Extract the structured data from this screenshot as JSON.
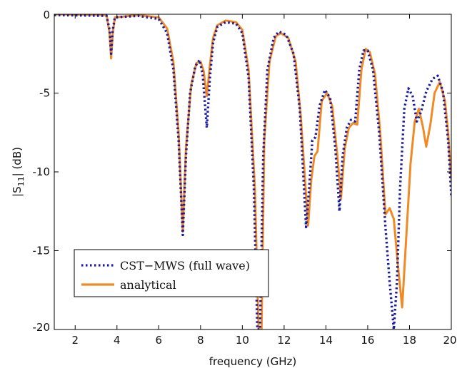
{
  "chart_data": {
    "type": "line",
    "xlabel": "frequency (GHz)",
    "ylabel": "|S",
    "ylabel_sub": "11",
    "ylabel_tail": "| (dB)",
    "xlim": [
      1,
      20
    ],
    "ylim": [
      -20,
      0
    ],
    "x_ticks": [
      "2",
      "4",
      "6",
      "8",
      "10",
      "12",
      "14",
      "16",
      "18",
      "20"
    ],
    "y_ticks": [
      "0",
      "-5",
      "-10",
      "-15",
      "-20"
    ],
    "grid": false,
    "legend_position": "bottom-left",
    "series": [
      {
        "name": "CST−MWS (full wave)",
        "color": "#1a1aa8",
        "style": "dotted",
        "points": [
          [
            1.0,
            -0.05
          ],
          [
            3.5,
            -0.1
          ],
          [
            3.65,
            -1.0
          ],
          [
            3.72,
            -2.5
          ],
          [
            3.8,
            -1.0
          ],
          [
            3.9,
            -0.2
          ],
          [
            5.0,
            -0.1
          ],
          [
            6.0,
            -0.3
          ],
          [
            6.4,
            -1.2
          ],
          [
            6.7,
            -3.5
          ],
          [
            6.95,
            -8.0
          ],
          [
            7.15,
            -14.0
          ],
          [
            7.3,
            -9.0
          ],
          [
            7.5,
            -5.0
          ],
          [
            7.75,
            -3.3
          ],
          [
            7.95,
            -2.9
          ],
          [
            8.1,
            -3.8
          ],
          [
            8.3,
            -7.2
          ],
          [
            8.45,
            -4.0
          ],
          [
            8.6,
            -1.8
          ],
          [
            8.8,
            -0.8
          ],
          [
            9.2,
            -0.5
          ],
          [
            9.7,
            -0.6
          ],
          [
            10.0,
            -1.2
          ],
          [
            10.3,
            -4.0
          ],
          [
            10.55,
            -11.0
          ],
          [
            10.72,
            -20.0
          ],
          [
            10.85,
            -20.0
          ],
          [
            11.0,
            -9.0
          ],
          [
            11.2,
            -3.5
          ],
          [
            11.5,
            -1.5
          ],
          [
            11.75,
            -1.1
          ],
          [
            12.1,
            -1.3
          ],
          [
            12.45,
            -2.5
          ],
          [
            12.75,
            -6.0
          ],
          [
            12.95,
            -11.0
          ],
          [
            13.05,
            -13.5
          ],
          [
            13.2,
            -11.0
          ],
          [
            13.35,
            -8.0
          ],
          [
            13.5,
            -7.8
          ],
          [
            13.7,
            -5.8
          ],
          [
            13.95,
            -4.8
          ],
          [
            14.2,
            -5.3
          ],
          [
            14.45,
            -8.5
          ],
          [
            14.65,
            -12.5
          ],
          [
            14.8,
            -9.0
          ],
          [
            15.0,
            -7.2
          ],
          [
            15.2,
            -6.7
          ],
          [
            15.4,
            -6.8
          ],
          [
            15.6,
            -3.5
          ],
          [
            15.8,
            -2.3
          ],
          [
            16.0,
            -2.3
          ],
          [
            16.25,
            -3.5
          ],
          [
            16.55,
            -7.5
          ],
          [
            16.85,
            -13.5
          ],
          [
            17.05,
            -17.0
          ],
          [
            17.25,
            -20.0
          ],
          [
            17.4,
            -17.0
          ],
          [
            17.55,
            -11.0
          ],
          [
            17.75,
            -6.0
          ],
          [
            17.95,
            -4.7
          ],
          [
            18.15,
            -5.2
          ],
          [
            18.35,
            -6.8
          ],
          [
            18.55,
            -6.2
          ],
          [
            18.8,
            -4.9
          ],
          [
            19.1,
            -4.1
          ],
          [
            19.35,
            -3.9
          ],
          [
            19.6,
            -4.9
          ],
          [
            19.85,
            -8.0
          ],
          [
            20.0,
            -11.5
          ]
        ]
      },
      {
        "name": "analytical",
        "color": "#f08a24",
        "style": "solid",
        "points": [
          [
            1.0,
            0.0
          ],
          [
            3.5,
            -0.05
          ],
          [
            3.65,
            -1.2
          ],
          [
            3.72,
            -2.8
          ],
          [
            3.8,
            -1.2
          ],
          [
            3.9,
            -0.2
          ],
          [
            5.0,
            -0.05
          ],
          [
            6.0,
            -0.2
          ],
          [
            6.4,
            -0.9
          ],
          [
            6.7,
            -3.0
          ],
          [
            6.95,
            -7.5
          ],
          [
            7.15,
            -13.8
          ],
          [
            7.3,
            -8.5
          ],
          [
            7.55,
            -4.5
          ],
          [
            7.8,
            -3.1
          ],
          [
            8.0,
            -3.0
          ],
          [
            8.15,
            -3.6
          ],
          [
            8.3,
            -5.2
          ],
          [
            8.45,
            -3.2
          ],
          [
            8.6,
            -1.5
          ],
          [
            8.8,
            -0.7
          ],
          [
            9.2,
            -0.4
          ],
          [
            9.7,
            -0.5
          ],
          [
            10.0,
            -1.0
          ],
          [
            10.3,
            -3.5
          ],
          [
            10.6,
            -11.0
          ],
          [
            10.78,
            -20.0
          ],
          [
            10.92,
            -20.0
          ],
          [
            11.05,
            -8.0
          ],
          [
            11.3,
            -3.0
          ],
          [
            11.6,
            -1.4
          ],
          [
            11.85,
            -1.2
          ],
          [
            12.2,
            -1.5
          ],
          [
            12.55,
            -3.0
          ],
          [
            12.8,
            -6.5
          ],
          [
            13.05,
            -11.5
          ],
          [
            13.15,
            -13.4
          ],
          [
            13.3,
            -10.5
          ],
          [
            13.45,
            -9.0
          ],
          [
            13.6,
            -8.7
          ],
          [
            13.8,
            -5.5
          ],
          [
            14.05,
            -5.0
          ],
          [
            14.3,
            -5.8
          ],
          [
            14.55,
            -9.0
          ],
          [
            14.72,
            -11.7
          ],
          [
            14.9,
            -8.5
          ],
          [
            15.1,
            -7.2
          ],
          [
            15.3,
            -6.9
          ],
          [
            15.5,
            -7.0
          ],
          [
            15.7,
            -3.5
          ],
          [
            15.9,
            -2.2
          ],
          [
            16.1,
            -2.4
          ],
          [
            16.35,
            -3.8
          ],
          [
            16.6,
            -7.5
          ],
          [
            16.85,
            -12.7
          ],
          [
            17.05,
            -12.3
          ],
          [
            17.25,
            -13.0
          ],
          [
            17.45,
            -16.0
          ],
          [
            17.65,
            -18.6
          ],
          [
            17.85,
            -14.0
          ],
          [
            18.05,
            -9.5
          ],
          [
            18.25,
            -6.8
          ],
          [
            18.45,
            -6.0
          ],
          [
            18.65,
            -7.2
          ],
          [
            18.8,
            -8.4
          ],
          [
            19.0,
            -7.0
          ],
          [
            19.2,
            -5.0
          ],
          [
            19.45,
            -4.3
          ],
          [
            19.7,
            -5.5
          ],
          [
            19.85,
            -7.5
          ],
          [
            20.0,
            -10.5
          ]
        ]
      }
    ]
  }
}
